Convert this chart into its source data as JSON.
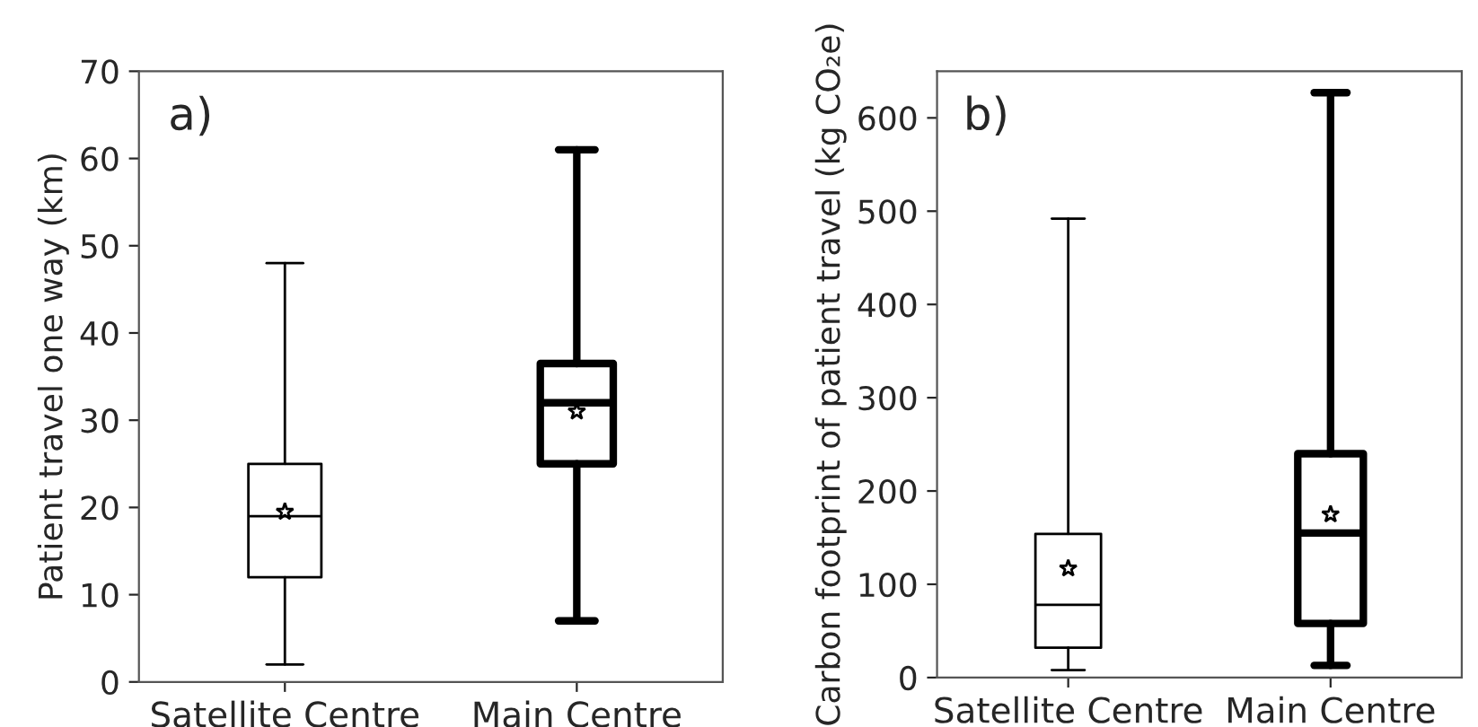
{
  "chart_data": [
    {
      "type": "box",
      "categories": [
        "Satellite Centre",
        "Main Centre"
      ],
      "ylabel": "Patient travel one way (km)",
      "annotations": [
        "a)"
      ],
      "ylim": [
        0,
        70
      ],
      "yticks": [
        0,
        10,
        20,
        30,
        40,
        50,
        60,
        70
      ],
      "grid": false,
      "marker": "star",
      "color": "#000000",
      "boxes": [
        {
          "low": 2,
          "q1": 12,
          "median": 19,
          "q3": 25,
          "high": 48,
          "mean": 19.5
        },
        {
          "low": 7,
          "q1": 25,
          "median": 32,
          "q3": 36.5,
          "high": 61,
          "mean": 31
        }
      ]
    },
    {
      "type": "box",
      "categories": [
        "Satellite Centre",
        "Main Centre"
      ],
      "ylabel": "Carbon footprint of patient travel (kg CO₂e)",
      "annotations": [
        "b)"
      ],
      "ylim": [
        0,
        650
      ],
      "yticks": [
        0,
        100,
        200,
        300,
        400,
        500,
        600
      ],
      "grid": false,
      "marker": "star",
      "color": "#000000",
      "boxes": [
        {
          "low": 8,
          "q1": 32,
          "median": 78,
          "q3": 154,
          "high": 492,
          "mean": 117
        },
        {
          "low": 13,
          "q1": 58,
          "median": 155,
          "q3": 240,
          "high": 627,
          "mean": 175
        }
      ]
    }
  ]
}
